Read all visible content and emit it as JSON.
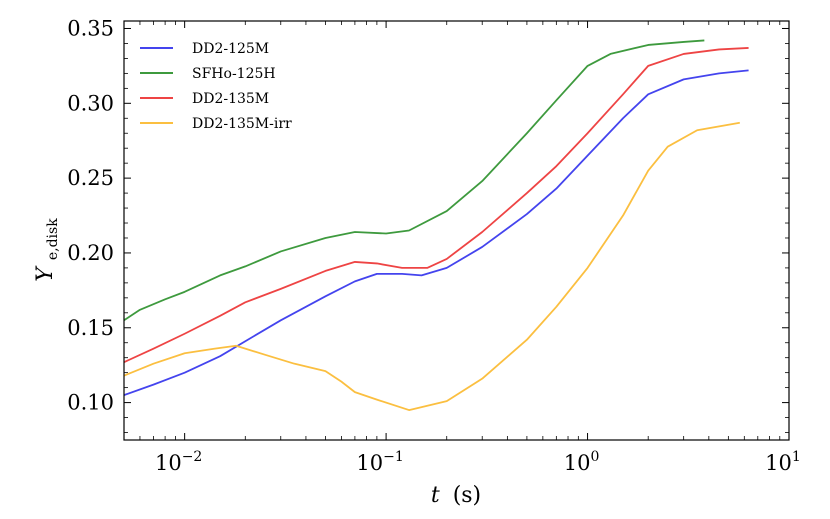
{
  "chart_data": {
    "type": "line",
    "title": "",
    "xlabel_var": "t",
    "xlabel_unit": "(s)",
    "ylabel_var": "Y",
    "ylabel_sub": "e,disk",
    "xscale": "log",
    "xlim": [
      0.005,
      10
    ],
    "ylim": [
      0.075,
      0.355
    ],
    "x_ticks": [
      {
        "value": 0.01,
        "base": "10",
        "exp": "−2"
      },
      {
        "value": 0.1,
        "base": "10",
        "exp": "−1"
      },
      {
        "value": 1,
        "base": "10",
        "exp": "0"
      },
      {
        "value": 10,
        "base": "10",
        "exp": "1"
      }
    ],
    "y_ticks": [
      {
        "value": 0.1,
        "label": "0.10"
      },
      {
        "value": 0.15,
        "label": "0.15"
      },
      {
        "value": 0.2,
        "label": "0.20"
      },
      {
        "value": 0.25,
        "label": "0.25"
      },
      {
        "value": 0.3,
        "label": "0.30"
      },
      {
        "value": 0.35,
        "label": "0.35"
      }
    ],
    "legend_position": "top-left",
    "series": [
      {
        "name": "DD2-125M",
        "color": "#4444ee",
        "x": [
          0.005,
          0.007,
          0.01,
          0.015,
          0.02,
          0.03,
          0.05,
          0.07,
          0.09,
          0.12,
          0.15,
          0.2,
          0.3,
          0.5,
          0.7,
          1.0,
          1.5,
          2.0,
          3.0,
          4.5,
          6.3
        ],
        "y": [
          0.105,
          0.112,
          0.12,
          0.131,
          0.141,
          0.155,
          0.171,
          0.181,
          0.186,
          0.186,
          0.185,
          0.19,
          0.204,
          0.226,
          0.243,
          0.265,
          0.29,
          0.306,
          0.316,
          0.32,
          0.322
        ]
      },
      {
        "name": "SFHo-125H",
        "color": "#3e9a3e",
        "x": [
          0.005,
          0.006,
          0.008,
          0.01,
          0.015,
          0.02,
          0.03,
          0.05,
          0.07,
          0.1,
          0.13,
          0.2,
          0.3,
          0.5,
          0.7,
          1.0,
          1.3,
          2.0,
          3.0,
          3.8
        ],
        "y": [
          0.155,
          0.162,
          0.169,
          0.174,
          0.185,
          0.191,
          0.201,
          0.21,
          0.214,
          0.213,
          0.215,
          0.228,
          0.248,
          0.28,
          0.302,
          0.325,
          0.333,
          0.339,
          0.341,
          0.342
        ]
      },
      {
        "name": "DD2-135M",
        "color": "#ee4444",
        "x": [
          0.005,
          0.007,
          0.01,
          0.015,
          0.02,
          0.03,
          0.05,
          0.07,
          0.09,
          0.12,
          0.16,
          0.2,
          0.3,
          0.5,
          0.7,
          1.0,
          1.5,
          2.0,
          3.0,
          4.5,
          6.3
        ],
        "y": [
          0.127,
          0.136,
          0.146,
          0.158,
          0.167,
          0.176,
          0.188,
          0.194,
          0.193,
          0.19,
          0.19,
          0.196,
          0.214,
          0.24,
          0.258,
          0.28,
          0.306,
          0.325,
          0.333,
          0.336,
          0.337
        ]
      },
      {
        "name": "DD2-135M-irr",
        "color": "#fbbf40",
        "x": [
          0.005,
          0.007,
          0.01,
          0.014,
          0.018,
          0.025,
          0.035,
          0.05,
          0.06,
          0.07,
          0.09,
          0.13,
          0.2,
          0.3,
          0.5,
          0.7,
          1.0,
          1.5,
          2.0,
          2.5,
          3.5,
          5.7
        ],
        "y": [
          0.118,
          0.126,
          0.133,
          0.136,
          0.138,
          0.132,
          0.126,
          0.121,
          0.114,
          0.107,
          0.102,
          0.095,
          0.101,
          0.116,
          0.142,
          0.164,
          0.19,
          0.225,
          0.255,
          0.271,
          0.282,
          0.287
        ]
      }
    ]
  }
}
